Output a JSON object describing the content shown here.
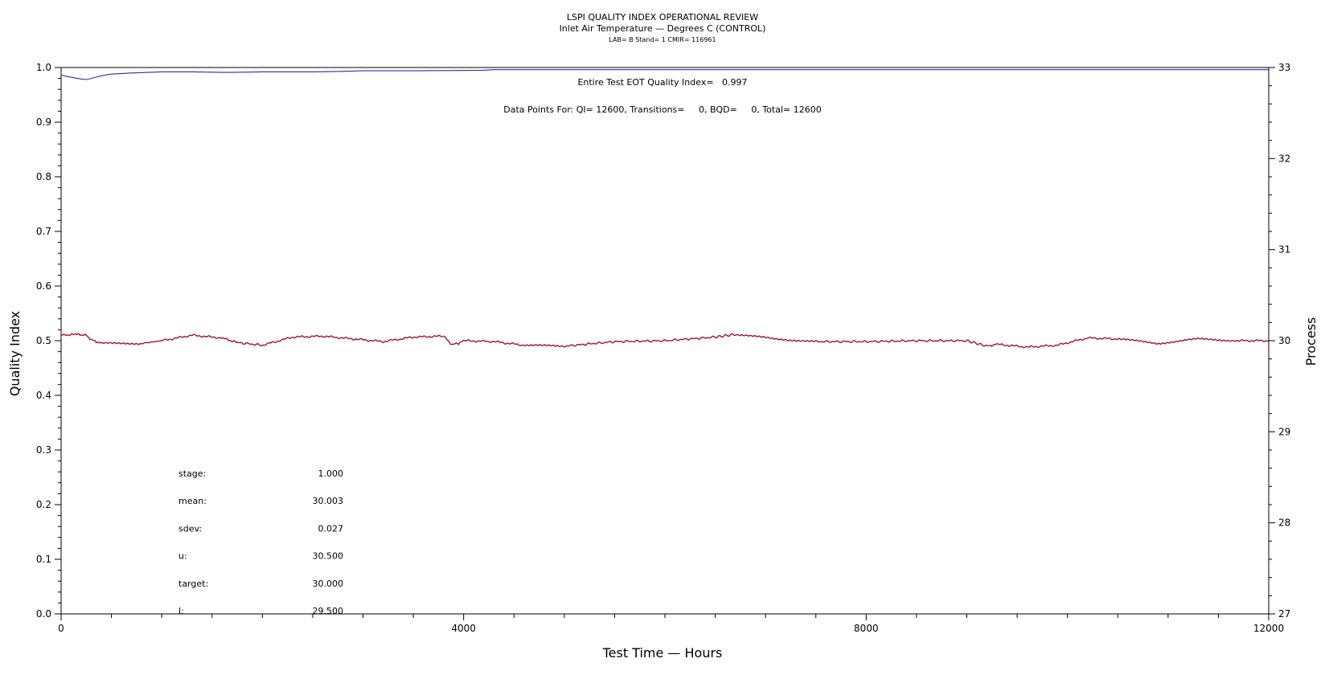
{
  "chart_data": {
    "type": "line",
    "title": "LSPI QUALITY INDEX OPERATIONAL REVIEW",
    "subtitle": "Inlet Air Temperature — Degrees C (CONTROL)",
    "subtitle2": "LAB= B Stand= 1 CMIR= 116961",
    "xlabel": "Test Time — Hours",
    "ylabel_left": "Quality Index",
    "ylabel_right": "Process",
    "xlim": [
      0,
      12000
    ],
    "ylim_left": [
      0,
      1.0
    ],
    "ylim_right": [
      27,
      33
    ],
    "x_ticks": [
      0,
      4000,
      8000,
      12000
    ],
    "x_tick_labels": [
      "0",
      "4000",
      "8000",
      "12000"
    ],
    "y_left_ticks": [
      0.0,
      0.1,
      0.2,
      0.3,
      0.4,
      0.5,
      0.6,
      0.7,
      0.8,
      0.9,
      1.0
    ],
    "y_left_tick_labels": [
      "0.0",
      "0.1",
      "0.2",
      "0.3",
      "0.4",
      "0.5",
      "0.6",
      "0.7",
      "0.8",
      "0.9",
      "1.0"
    ],
    "y_right_ticks": [
      27,
      28,
      29,
      30,
      31,
      32,
      33
    ],
    "y_right_tick_labels": [
      "27",
      "28",
      "29",
      "30",
      "31",
      "32",
      "33"
    ],
    "grid": false,
    "annotations": [
      "Entire Test EOT Quality Index=   0.997",
      "Data Points For: QI= 12600, Transitions=     0, BQD=     0, Total= 12600"
    ],
    "stats": [
      {
        "label": "stage:",
        "value": "1.000"
      },
      {
        "label": "mean:",
        "value": "30.003"
      },
      {
        "label": "sdev:",
        "value": "0.027"
      },
      {
        "label": "u:",
        "value": "30.500"
      },
      {
        "label": "target:",
        "value": "30.000"
      },
      {
        "label": "l:",
        "value": "29.500"
      }
    ],
    "series": [
      {
        "axis": "left",
        "color": "#2b2bb0",
        "x": [
          0,
          100,
          200,
          250,
          300,
          400,
          500,
          700,
          1000,
          1300,
          1600,
          1700,
          2000,
          2500,
          2800,
          3000,
          3500,
          4200,
          4300,
          6000,
          8000,
          10000,
          12000
        ],
        "y": [
          0.986,
          0.982,
          0.979,
          0.978,
          0.98,
          0.985,
          0.988,
          0.99,
          0.992,
          0.992,
          0.991,
          0.991,
          0.992,
          0.992,
          0.993,
          0.994,
          0.994,
          0.995,
          0.996,
          0.996,
          0.996,
          0.996,
          0.996
        ]
      },
      {
        "axis": "right",
        "color": "#a0142a",
        "x": [
          0,
          150,
          250,
          300,
          400,
          800,
          1000,
          1300,
          1600,
          1750,
          2000,
          2300,
          2600,
          2900,
          3200,
          3500,
          3800,
          3880,
          3950,
          4000,
          4300,
          4600,
          5000,
          5500,
          6000,
          6500,
          6700,
          7100,
          7500,
          8000,
          8500,
          9000,
          9200,
          9300,
          9600,
          9900,
          10200,
          10500,
          10900,
          11300,
          11700,
          12000
        ],
        "y": [
          30.06,
          30.07,
          30.06,
          30.01,
          29.97,
          29.97,
          30.0,
          30.06,
          30.03,
          29.98,
          29.95,
          30.04,
          30.05,
          30.02,
          29.99,
          30.04,
          30.05,
          29.96,
          29.97,
          30.0,
          29.99,
          29.95,
          29.94,
          29.99,
          30.0,
          30.04,
          30.07,
          30.02,
          29.99,
          29.99,
          30.0,
          30.0,
          29.94,
          29.96,
          29.93,
          29.95,
          30.03,
          30.02,
          29.97,
          30.02,
          30.0,
          30.0
        ]
      }
    ]
  }
}
